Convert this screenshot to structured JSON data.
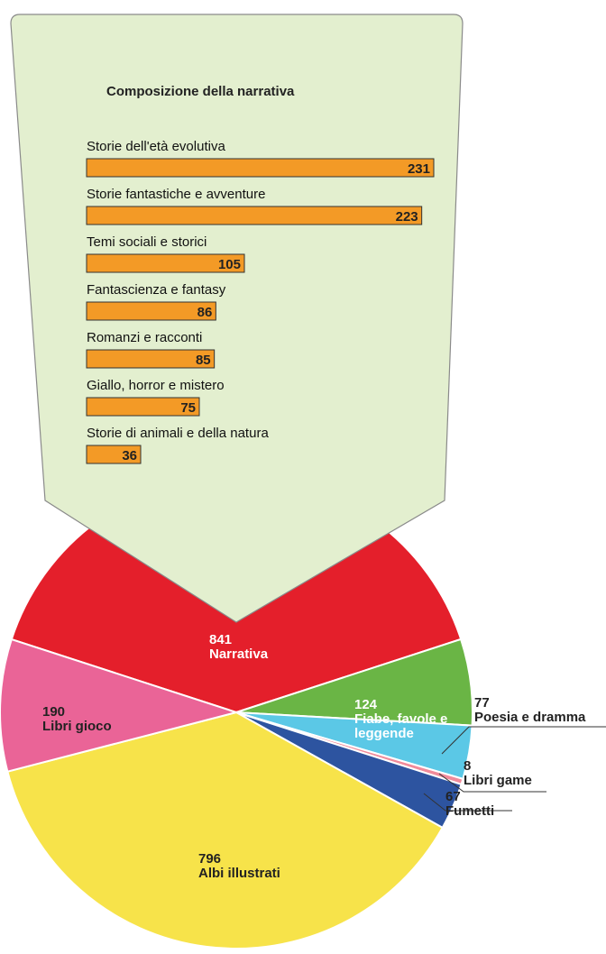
{
  "chart_data": [
    {
      "type": "pie",
      "categories": [
        "Narrativa",
        "Fiabe, favole e leggende",
        "Poesia e dramma",
        "Libri game",
        "Fumetti",
        "Albi illustrati",
        "Libri gioco"
      ],
      "values": [
        841,
        124,
        77,
        8,
        67,
        796,
        190
      ],
      "colors": [
        "#e41f2b",
        "#6ab545",
        "#5bc8e6",
        "#f08a9a",
        "#2d54a0",
        "#f7e34a",
        "#ea6497"
      ]
    },
    {
      "type": "bar",
      "title": "Composizione della narrativa",
      "categories": [
        "Storie dell'età evolutiva",
        "Storie fantastiche e avventure",
        "Temi sociali e storici",
        "Fantascienza e fantasy",
        "Romanzi e racconti",
        "Giallo, horror e mistero",
        "Storie di animali e della natura"
      ],
      "values": [
        231,
        223,
        105,
        86,
        85,
        75,
        36
      ],
      "color": "#f39a26"
    }
  ]
}
